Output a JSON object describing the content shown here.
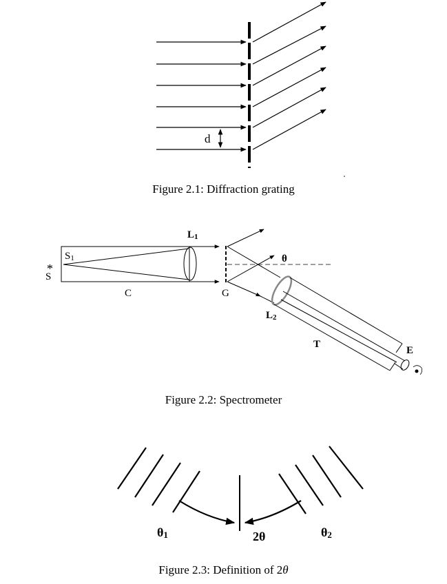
{
  "figure1": {
    "caption": "Figure 2.1: Diffraction grating",
    "labels": {
      "spacing": "d"
    }
  },
  "figure2": {
    "caption": "Figure 2.2: Spectrometer",
    "labels": {
      "source_star": "*",
      "source": "S",
      "slit": "S",
      "slit_sub": "1",
      "lens1": "L",
      "lens1_sub": "1",
      "collimator": "C",
      "grating": "G",
      "angle": "θ",
      "lens2": "L",
      "lens2_sub": "2",
      "telescope": "T",
      "eyepiece": "E"
    }
  },
  "figure3": {
    "caption_prefix": "Figure 2.3: Definition of 2",
    "caption_symbol": "θ",
    "labels": {
      "theta1": "θ",
      "theta1_sub": "1",
      "two_theta": "2θ",
      "theta2": "θ",
      "theta2_sub": "2"
    }
  }
}
